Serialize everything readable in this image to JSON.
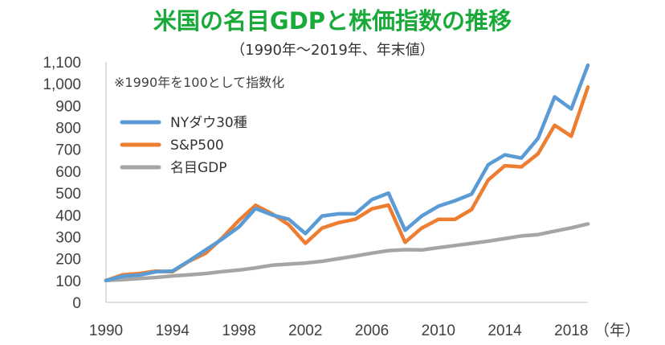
{
  "chart_data": {
    "type": "line",
    "title": "米国の名目GDPと株価指数の推移",
    "subtitle": "（1990年〜2019年、年末値）",
    "annotation": "※1990年を100として指数化",
    "x_unit": "（年）",
    "x": [
      1990,
      1991,
      1992,
      1993,
      1994,
      1995,
      1996,
      1997,
      1998,
      1999,
      2000,
      2001,
      2002,
      2003,
      2004,
      2005,
      2006,
      2007,
      2008,
      2009,
      2010,
      2011,
      2012,
      2013,
      2014,
      2015,
      2016,
      2017,
      2018,
      2019
    ],
    "x_ticks": [
      "1990",
      "1994",
      "1998",
      "2002",
      "2006",
      "2010",
      "2014",
      "2018"
    ],
    "x_tick_values": [
      1990,
      1994,
      1998,
      2002,
      2006,
      2010,
      2014,
      2018
    ],
    "xlim": [
      1990,
      2019
    ],
    "ylim": [
      0,
      1100
    ],
    "y_ticks": [
      "0",
      "100",
      "200",
      "300",
      "400",
      "500",
      "600",
      "700",
      "800",
      "900",
      "1,000",
      "1,100"
    ],
    "y_tick_values": [
      0,
      100,
      200,
      300,
      400,
      500,
      600,
      700,
      800,
      900,
      1000,
      1100
    ],
    "grid": false,
    "legend_position": "top-left",
    "series": [
      {
        "name": "NYダウ30種",
        "color": "#5b9bd5",
        "values": [
          100,
          120,
          125,
          140,
          143,
          190,
          240,
          290,
          345,
          430,
          400,
          380,
          315,
          395,
          405,
          405,
          470,
          500,
          330,
          395,
          440,
          465,
          495,
          630,
          675,
          660,
          750,
          940,
          885,
          1085
        ]
      },
      {
        "name": "S&P500",
        "color": "#ed7d31",
        "values": [
          100,
          126,
          132,
          143,
          140,
          188,
          225,
          295,
          375,
          444,
          405,
          355,
          270,
          340,
          365,
          380,
          428,
          445,
          275,
          340,
          380,
          380,
          425,
          560,
          625,
          620,
          680,
          810,
          760,
          985
        ]
      },
      {
        "name": "名目GDP",
        "color": "#a5a5a5",
        "values": [
          100,
          104,
          109,
          114,
          121,
          126,
          132,
          141,
          148,
          158,
          170,
          175,
          180,
          188,
          200,
          212,
          225,
          237,
          241,
          240,
          250,
          260,
          270,
          280,
          292,
          304,
          310,
          326,
          341,
          359
        ]
      }
    ]
  }
}
